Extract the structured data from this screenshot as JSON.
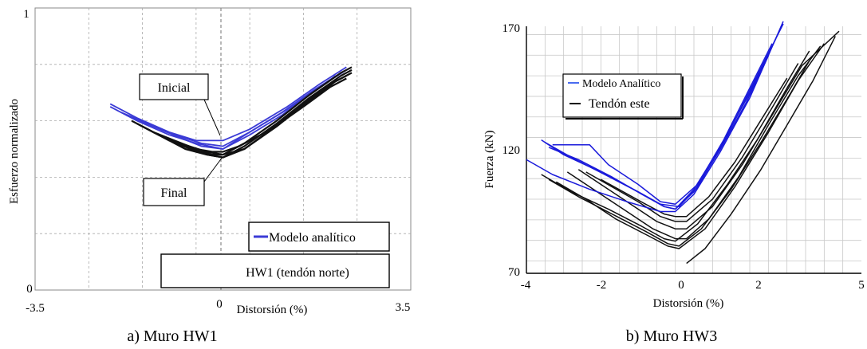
{
  "chart_data": [
    {
      "type": "line",
      "caption": "a) Muro HW1",
      "xlabel": "Distorsión (%)",
      "ylabel": "Esfuerzo normalizado",
      "xlim": [
        -3.5,
        3.5
      ],
      "ylim": [
        0,
        1
      ],
      "x_ticks": [
        "-3.5",
        "0",
        "3.5"
      ],
      "y_ticks": [
        "0",
        "1"
      ],
      "grid": true,
      "annotations": [
        "Inicial",
        "Final"
      ],
      "legend": [
        "Modelo analítico"
      ],
      "specimen_label": "HW1 (tendón norte)",
      "series": [
        {
          "name": "Modelo analítico",
          "color": "#3b3bd6",
          "loops": [
            [
              [
                -2.1,
                0.65
              ],
              [
                -1.6,
                0.6
              ],
              [
                -1.0,
                0.55
              ],
              [
                -0.5,
                0.52
              ],
              [
                0,
                0.5
              ],
              [
                0.5,
                0.56
              ],
              [
                1.2,
                0.64
              ],
              [
                1.8,
                0.72
              ],
              [
                2.3,
                0.78
              ]
            ],
            [
              [
                -2.1,
                0.66
              ],
              [
                -1.6,
                0.61
              ],
              [
                -1.0,
                0.56
              ],
              [
                -0.5,
                0.53
              ],
              [
                0,
                0.53
              ],
              [
                0.5,
                0.57
              ],
              [
                1.2,
                0.65
              ],
              [
                1.8,
                0.73
              ],
              [
                2.3,
                0.79
              ]
            ],
            [
              [
                -1.9,
                0.63
              ],
              [
                -1.4,
                0.59
              ],
              [
                -0.9,
                0.55
              ],
              [
                -0.4,
                0.52
              ],
              [
                0,
                0.51
              ],
              [
                0.5,
                0.56
              ],
              [
                1.1,
                0.63
              ],
              [
                1.7,
                0.71
              ],
              [
                2.2,
                0.77
              ]
            ],
            [
              [
                -1.8,
                0.62
              ],
              [
                -1.3,
                0.58
              ],
              [
                -0.8,
                0.54
              ],
              [
                -0.4,
                0.51
              ],
              [
                0,
                0.5
              ],
              [
                0.5,
                0.55
              ],
              [
                1.1,
                0.62
              ],
              [
                1.6,
                0.69
              ],
              [
                2.1,
                0.76
              ]
            ]
          ]
        },
        {
          "name": "black",
          "color": "#111111",
          "loops": [
            [
              [
                -1.7,
                0.6
              ],
              [
                -1.3,
                0.56
              ],
              [
                -0.8,
                0.52
              ],
              [
                -0.3,
                0.49
              ],
              [
                0,
                0.48
              ],
              [
                0.4,
                0.52
              ],
              [
                1.0,
                0.6
              ],
              [
                1.6,
                0.69
              ],
              [
                2.2,
                0.77
              ],
              [
                2.4,
                0.79
              ]
            ],
            [
              [
                -1.6,
                0.59
              ],
              [
                -1.2,
                0.55
              ],
              [
                -0.7,
                0.51
              ],
              [
                -0.3,
                0.48
              ],
              [
                0,
                0.47
              ],
              [
                0.4,
                0.51
              ],
              [
                1.0,
                0.59
              ],
              [
                1.6,
                0.68
              ],
              [
                2.2,
                0.76
              ],
              [
                2.4,
                0.78
              ]
            ],
            [
              [
                -1.5,
                0.58
              ],
              [
                -1.1,
                0.54
              ],
              [
                -0.7,
                0.5
              ],
              [
                -0.3,
                0.48
              ],
              [
                0,
                0.47
              ],
              [
                0.4,
                0.5
              ],
              [
                1.0,
                0.58
              ],
              [
                1.6,
                0.67
              ],
              [
                2.1,
                0.74
              ],
              [
                2.4,
                0.77
              ]
            ],
            [
              [
                -1.4,
                0.57
              ],
              [
                -1.0,
                0.53
              ],
              [
                -0.6,
                0.5
              ],
              [
                -0.2,
                0.48
              ],
              [
                0,
                0.48
              ],
              [
                0.4,
                0.5
              ],
              [
                0.9,
                0.57
              ],
              [
                1.5,
                0.66
              ],
              [
                2.0,
                0.73
              ],
              [
                2.3,
                0.76
              ]
            ],
            [
              [
                -1.3,
                0.56
              ],
              [
                -0.9,
                0.53
              ],
              [
                -0.5,
                0.5
              ],
              [
                -0.2,
                0.49
              ],
              [
                0,
                0.49
              ],
              [
                0.3,
                0.51
              ],
              [
                0.9,
                0.57
              ],
              [
                1.5,
                0.65
              ],
              [
                2.0,
                0.72
              ],
              [
                2.3,
                0.75
              ]
            ]
          ]
        }
      ]
    },
    {
      "type": "line",
      "caption": "b) Muro HW3",
      "xlabel": "Distorsión (%)",
      "ylabel": "Fuerza (kN)",
      "xlim": [
        -4,
        5
      ],
      "ylim": [
        70,
        170
      ],
      "x_ticks": [
        "-4",
        "-2",
        "0",
        "2",
        "5"
      ],
      "y_ticks": [
        "70",
        "120",
        "170"
      ],
      "grid": true,
      "legend": [
        "Modelo Analítico",
        "Tendón este"
      ],
      "series": [
        {
          "name": "Modelo Analítico",
          "color": "#1a1adb",
          "loops": [
            [
              [
                -4.0,
                116
              ],
              [
                -3.3,
                110
              ],
              [
                -2.3,
                104
              ],
              [
                -1.3,
                99
              ],
              [
                -0.4,
                95
              ],
              [
                0,
                95
              ],
              [
                0.5,
                102
              ],
              [
                1.2,
                119
              ],
              [
                2.0,
                141
              ],
              [
                2.9,
                172
              ]
            ],
            [
              [
                -3.6,
                124
              ],
              [
                -3.0,
                118
              ],
              [
                -2.0,
                111
              ],
              [
                -1.0,
                103
              ],
              [
                -0.3,
                97
              ],
              [
                0,
                96
              ],
              [
                0.5,
                104
              ],
              [
                1.2,
                121
              ],
              [
                2.0,
                143
              ],
              [
                2.7,
                165
              ]
            ],
            [
              [
                -3.3,
                122
              ],
              [
                -2.3,
                122
              ],
              [
                -1.8,
                114
              ],
              [
                -1.0,
                106
              ],
              [
                -0.4,
                99
              ],
              [
                0,
                98
              ],
              [
                0.6,
                106
              ],
              [
                1.3,
                124
              ],
              [
                2.0,
                145
              ],
              [
                2.6,
                163
              ]
            ],
            [
              [
                -3.4,
                121
              ],
              [
                -2.6,
                116
              ],
              [
                -1.7,
                109
              ],
              [
                -0.9,
                102
              ],
              [
                -0.3,
                97
              ],
              [
                0,
                96
              ],
              [
                0.5,
                103
              ],
              [
                1.2,
                120
              ],
              [
                1.9,
                139
              ],
              [
                2.5,
                158
              ]
            ],
            [
              [
                -3.5,
                123
              ],
              [
                -2.8,
                117
              ],
              [
                -1.9,
                110
              ],
              [
                -1.0,
                103
              ],
              [
                -0.4,
                98
              ],
              [
                0.1,
                97
              ],
              [
                0.6,
                105
              ],
              [
                1.3,
                123
              ],
              [
                2.1,
                147
              ],
              [
                2.9,
                171
              ]
            ]
          ]
        },
        {
          "name": "Tendón este",
          "color": "#111111",
          "loops": [
            [
              [
                -3.6,
                110
              ],
              [
                -2.8,
                103
              ],
              [
                -1.8,
                96
              ],
              [
                -0.9,
                89
              ],
              [
                -0.3,
                84
              ],
              [
                0,
                83
              ],
              [
                0.6,
                90
              ],
              [
                1.4,
                106
              ],
              [
                2.2,
                124
              ],
              [
                3.0,
                145
              ],
              [
                3.6,
                160
              ]
            ],
            [
              [
                -3.4,
                108
              ],
              [
                -2.6,
                101
              ],
              [
                -1.7,
                94
              ],
              [
                -0.8,
                87
              ],
              [
                -0.2,
                82
              ],
              [
                0.1,
                81
              ],
              [
                0.7,
                88
              ],
              [
                1.5,
                104
              ],
              [
                2.3,
                123
              ],
              [
                3.1,
                143
              ],
              [
                3.6,
                156
              ]
            ],
            [
              [
                -3.2,
                107
              ],
              [
                -2.4,
                100
              ],
              [
                -1.6,
                92
              ],
              [
                -0.7,
                85
              ],
              [
                -0.2,
                81
              ],
              [
                0.1,
                80
              ],
              [
                0.8,
                88
              ],
              [
                1.6,
                105
              ],
              [
                2.5,
                127
              ],
              [
                3.3,
                148
              ],
              [
                4.0,
                163
              ]
            ],
            [
              [
                -2.9,
                111
              ],
              [
                -2.2,
                104
              ],
              [
                -1.4,
                96
              ],
              [
                -0.6,
                88
              ],
              [
                0,
                84
              ],
              [
                0.3,
                84
              ],
              [
                0.9,
                92
              ],
              [
                1.7,
                109
              ],
              [
                2.5,
                130
              ],
              [
                3.3,
                150
              ],
              [
                3.9,
                162
              ]
            ],
            [
              [
                -2.6,
                112
              ],
              [
                -1.9,
                105
              ],
              [
                -1.2,
                98
              ],
              [
                -0.5,
                91
              ],
              [
                0,
                88
              ],
              [
                0.3,
                88
              ],
              [
                1.0,
                97
              ],
              [
                1.8,
                114
              ],
              [
                2.6,
                134
              ],
              [
                3.4,
                154
              ],
              [
                4.4,
                168
              ]
            ],
            [
              [
                -2.4,
                111
              ],
              [
                -1.7,
                105
              ],
              [
                -1.0,
                99
              ],
              [
                -0.4,
                93
              ],
              [
                0,
                91
              ],
              [
                0.3,
                91
              ],
              [
                1.0,
                100
              ],
              [
                1.8,
                117
              ],
              [
                2.6,
                137
              ],
              [
                3.3,
                155
              ]
            ],
            [
              [
                -2.0,
                108
              ],
              [
                -1.4,
                103
              ],
              [
                -0.8,
                98
              ],
              [
                -0.3,
                94
              ],
              [
                0,
                93
              ],
              [
                0.3,
                93
              ],
              [
                0.9,
                101
              ],
              [
                1.6,
                115
              ],
              [
                2.3,
                132
              ],
              [
                3.0,
                149
              ]
            ],
            [
              [
                0.3,
                74
              ],
              [
                0.8,
                80
              ],
              [
                1.5,
                94
              ],
              [
                2.3,
                112
              ],
              [
                3.0,
                130
              ],
              [
                3.7,
                148
              ],
              [
                4.3,
                166
              ]
            ]
          ]
        }
      ]
    }
  ]
}
